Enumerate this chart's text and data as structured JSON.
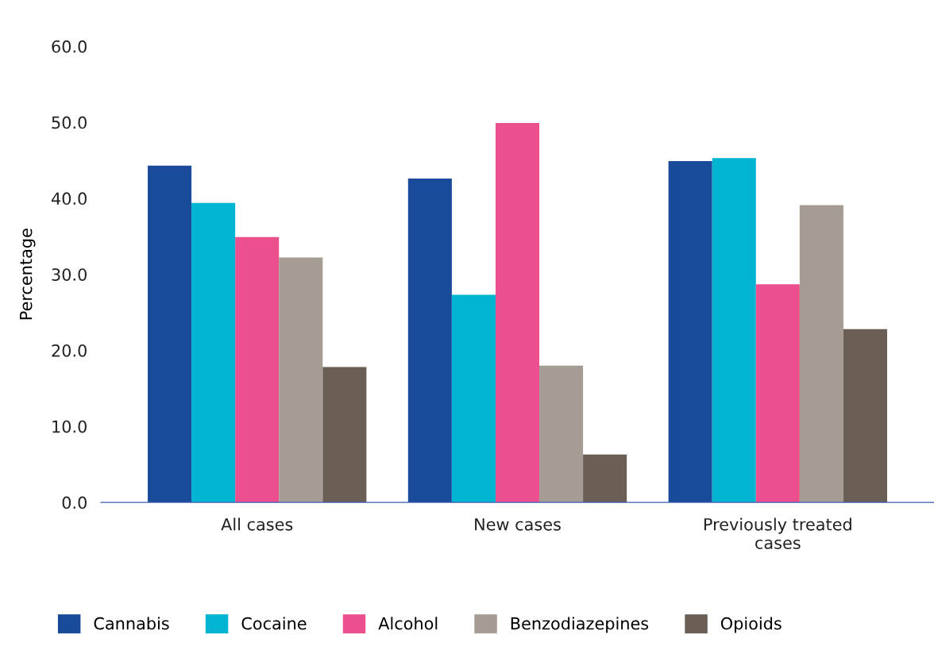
{
  "chart_data": {
    "type": "bar",
    "ylabel": "Percentage",
    "categories": [
      "All cases",
      "New cases",
      "Previously treated\ncases"
    ],
    "series": [
      {
        "name": "Cannabis",
        "color": "#1a4a9a",
        "values": [
          44.3,
          42.6,
          44.9
        ]
      },
      {
        "name": "Cocaine",
        "color": "#00b4d2",
        "values": [
          39.4,
          27.3,
          45.3
        ]
      },
      {
        "name": "Alcohol",
        "color": "#ec4f8e",
        "values": [
          34.9,
          49.9,
          28.7
        ]
      },
      {
        "name": "Benzodiazepines",
        "color": "#a59c93",
        "values": [
          32.2,
          18.0,
          39.1
        ]
      },
      {
        "name": "Opioids",
        "color": "#6b5f55",
        "values": [
          17.8,
          6.3,
          22.8
        ]
      }
    ],
    "ylim": [
      0,
      60
    ],
    "yticks": [
      {
        "value": 0,
        "label": "0.0"
      },
      {
        "value": 10,
        "label": "10.0"
      },
      {
        "value": 20,
        "label": "20.0"
      },
      {
        "value": 30,
        "label": "30.0"
      },
      {
        "value": 40,
        "label": "40.0"
      },
      {
        "value": 50,
        "label": "50.0"
      },
      {
        "value": 60,
        "label": "60.0"
      }
    ],
    "grid": false,
    "legend": "bottom"
  }
}
